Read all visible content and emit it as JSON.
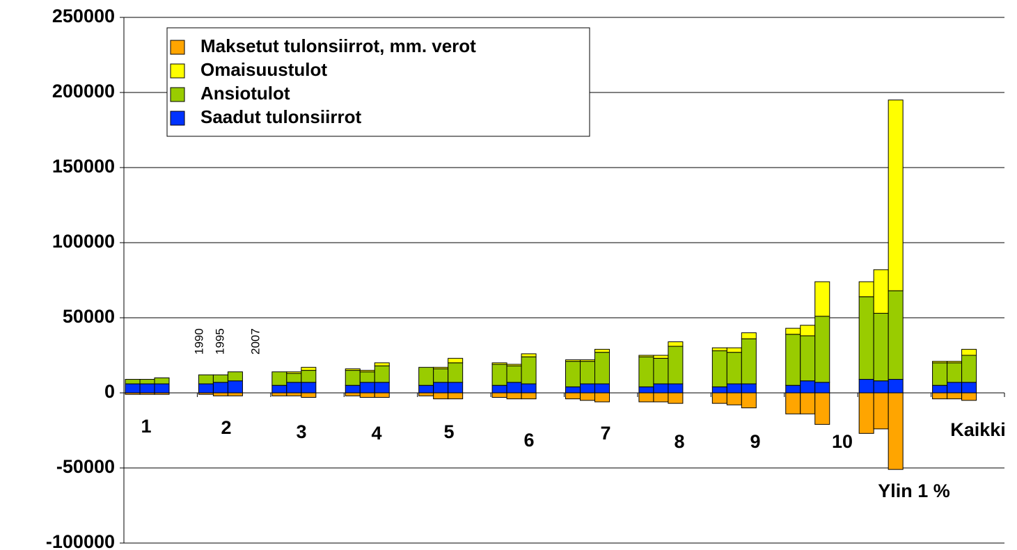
{
  "chart_data": {
    "type": "stacked-grouped-bar",
    "categories": [
      "1",
      "2",
      "3",
      "4",
      "5",
      "6",
      "7",
      "8",
      "9",
      "10",
      "Ylin 1 %",
      "Kaikki"
    ],
    "subcategories": [
      "1990",
      "1995",
      "2007"
    ],
    "series": [
      {
        "name": "Maksetut tulonsiirrot, mm. verot",
        "color": "#ffa500",
        "values": [
          [
            -1000,
            -1000,
            -1000
          ],
          [
            -1000,
            -2000,
            -2000
          ],
          [
            -2000,
            -2000,
            -3000
          ],
          [
            -2000,
            -3000,
            -3000
          ],
          [
            -2000,
            -4000,
            -4000
          ],
          [
            -3000,
            -4000,
            -4000
          ],
          [
            -4000,
            -5000,
            -6000
          ],
          [
            -6000,
            -6000,
            -7000
          ],
          [
            -7000,
            -8000,
            -10000
          ],
          [
            -14000,
            -14000,
            -21000
          ],
          [
            -27000,
            -24000,
            -51000
          ],
          [
            -4000,
            -4000,
            -5000
          ]
        ]
      },
      {
        "name": "Omaisuustulot",
        "color": "#ffff00",
        "values": [
          [
            0,
            0,
            0
          ],
          [
            0,
            0,
            0
          ],
          [
            0,
            1000,
            2000
          ],
          [
            1000,
            1000,
            2000
          ],
          [
            0,
            1000,
            3000
          ],
          [
            1000,
            1000,
            2000
          ],
          [
            1000,
            1000,
            2000
          ],
          [
            1000,
            2000,
            3000
          ],
          [
            2000,
            3000,
            4000
          ],
          [
            4000,
            7000,
            23000
          ],
          [
            10000,
            29000,
            127000
          ],
          [
            1000,
            1000,
            4000
          ]
        ]
      },
      {
        "name": "Ansiotulot",
        "color": "#99cc00",
        "values": [
          [
            3000,
            3000,
            4000
          ],
          [
            6000,
            5000,
            6000
          ],
          [
            9000,
            6000,
            8000
          ],
          [
            10000,
            7000,
            11000
          ],
          [
            12000,
            9000,
            13000
          ],
          [
            14000,
            11000,
            18000
          ],
          [
            17000,
            15000,
            21000
          ],
          [
            20000,
            17000,
            25000
          ],
          [
            24000,
            21000,
            30000
          ],
          [
            34000,
            30000,
            44000
          ],
          [
            55000,
            45000,
            59000
          ],
          [
            15000,
            13000,
            18000
          ]
        ]
      },
      {
        "name": "Saadut tulonsiirrot",
        "color": "#0033ff",
        "values": [
          [
            6000,
            6000,
            6000
          ],
          [
            6000,
            7000,
            8000
          ],
          [
            5000,
            7000,
            7000
          ],
          [
            5000,
            7000,
            7000
          ],
          [
            5000,
            7000,
            7000
          ],
          [
            5000,
            7000,
            6000
          ],
          [
            4000,
            6000,
            6000
          ],
          [
            4000,
            6000,
            6000
          ],
          [
            4000,
            6000,
            6000
          ],
          [
            5000,
            8000,
            7000
          ],
          [
            9000,
            8000,
            9000
          ],
          [
            5000,
            7000,
            7000
          ]
        ]
      }
    ],
    "ylim": [
      -100000,
      250000
    ],
    "yticks": [
      -100000,
      -50000,
      0,
      50000,
      100000,
      150000,
      200000,
      250000
    ],
    "grid": true
  }
}
